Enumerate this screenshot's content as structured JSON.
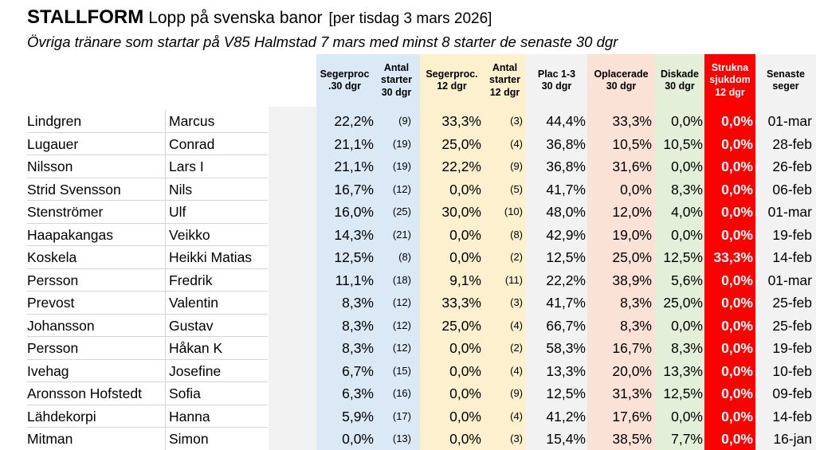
{
  "header": {
    "brand": "STALLFORM",
    "title": "Lopp på svenska banor",
    "date_note": "[per tisdag 3 mars 2026]",
    "subtitle": "Övriga tränare som startar på V85 Halmstad 7 mars med minst 8 starter de senaste 30 dgr"
  },
  "colors": {
    "blue": "#dbe8f6",
    "yellow": "#fdf0cf",
    "grey": "#f2f2f2",
    "salmon": "#fbe2d7",
    "green": "#e3efd9",
    "red": "#ff0000"
  },
  "columns": {
    "seger30": "Segerproc\n.30 dgr",
    "starter30": "Antal\nstarter\n30 dgr",
    "seger12": "Segerproc.\n12 dgr",
    "starter12": "Antal\nstarter\n12 dgr",
    "plac": "Plac 1-3\n30 dgr",
    "oplac": "Oplacerade\n30 dgr",
    "disk": "Diskade\n30 dgr",
    "strukna": "Strukna\nsjukdom\n12 dgr",
    "senaste": "Senaste\nseger"
  },
  "rows": [
    {
      "last": "Lindgren",
      "first": "Marcus",
      "s30": "22,2%",
      "n30": "(9)",
      "s12": "33,3%",
      "n12": "(3)",
      "plac": "44,4%",
      "oplac": "33,3%",
      "disk": "0,0%",
      "str": "0,0%",
      "sen": "01-mar"
    },
    {
      "last": "Lugauer",
      "first": "Conrad",
      "s30": "21,1%",
      "n30": "(19)",
      "s12": "25,0%",
      "n12": "(4)",
      "plac": "36,8%",
      "oplac": "10,5%",
      "disk": "10,5%",
      "str": "0,0%",
      "sen": "28-feb"
    },
    {
      "last": "Nilsson",
      "first": "Lars I",
      "s30": "21,1%",
      "n30": "(19)",
      "s12": "22,2%",
      "n12": "(9)",
      "plac": "36,8%",
      "oplac": "31,6%",
      "disk": "0,0%",
      "str": "0,0%",
      "sen": "26-feb"
    },
    {
      "last": "Strid Svensson",
      "first": "Nils",
      "s30": "16,7%",
      "n30": "(12)",
      "s12": "0,0%",
      "n12": "(5)",
      "plac": "41,7%",
      "oplac": "0,0%",
      "disk": "8,3%",
      "str": "0,0%",
      "sen": "06-feb"
    },
    {
      "last": "Stenströmer",
      "first": "Ulf",
      "s30": "16,0%",
      "n30": "(25)",
      "s12": "30,0%",
      "n12": "(10)",
      "plac": "48,0%",
      "oplac": "12,0%",
      "disk": "4,0%",
      "str": "0,0%",
      "sen": "01-mar"
    },
    {
      "last": "Haapakangas",
      "first": "Veikko",
      "s30": "14,3%",
      "n30": "(21)",
      "s12": "0,0%",
      "n12": "(8)",
      "plac": "42,9%",
      "oplac": "19,0%",
      "disk": "0,0%",
      "str": "0,0%",
      "sen": "19-feb"
    },
    {
      "last": "Koskela",
      "first": "Heikki Matias",
      "s30": "12,5%",
      "n30": "(8)",
      "s12": "0,0%",
      "n12": "(2)",
      "plac": "12,5%",
      "oplac": "25,0%",
      "disk": "12,5%",
      "str": "33,3%",
      "sen": "14-feb"
    },
    {
      "last": "Persson",
      "first": "Fredrik",
      "s30": "11,1%",
      "n30": "(18)",
      "s12": "9,1%",
      "n12": "(11)",
      "plac": "22,2%",
      "oplac": "38,9%",
      "disk": "5,6%",
      "str": "0,0%",
      "sen": "01-mar"
    },
    {
      "last": "Prevost",
      "first": "Valentin",
      "s30": "8,3%",
      "n30": "(12)",
      "s12": "33,3%",
      "n12": "(3)",
      "plac": "41,7%",
      "oplac": "8,3%",
      "disk": "25,0%",
      "str": "0,0%",
      "sen": "25-feb"
    },
    {
      "last": "Johansson",
      "first": "Gustav",
      "s30": "8,3%",
      "n30": "(12)",
      "s12": "25,0%",
      "n12": "(4)",
      "plac": "66,7%",
      "oplac": "8,3%",
      "disk": "0,0%",
      "str": "0,0%",
      "sen": "25-feb"
    },
    {
      "last": "Persson",
      "first": "Håkan K",
      "s30": "8,3%",
      "n30": "(12)",
      "s12": "0,0%",
      "n12": "(2)",
      "plac": "58,3%",
      "oplac": "16,7%",
      "disk": "8,3%",
      "str": "0,0%",
      "sen": "19-feb"
    },
    {
      "last": "Ivehag",
      "first": "Josefine",
      "s30": "6,7%",
      "n30": "(15)",
      "s12": "0,0%",
      "n12": "(4)",
      "plac": "13,3%",
      "oplac": "20,0%",
      "disk": "13,3%",
      "str": "0,0%",
      "sen": "10-feb"
    },
    {
      "last": "Aronsson Hofstedt",
      "first": "Sofia",
      "s30": "6,3%",
      "n30": "(16)",
      "s12": "0,0%",
      "n12": "(9)",
      "plac": "12,5%",
      "oplac": "31,3%",
      "disk": "12,5%",
      "str": "0,0%",
      "sen": "09-feb"
    },
    {
      "last": "Lähdekorpi",
      "first": "Hanna",
      "s30": "5,9%",
      "n30": "(17)",
      "s12": "0,0%",
      "n12": "(4)",
      "plac": "41,2%",
      "oplac": "17,6%",
      "disk": "0,0%",
      "str": "0,0%",
      "sen": "14-feb"
    },
    {
      "last": "Mitman",
      "first": "Simon",
      "s30": "0,0%",
      "n30": "(13)",
      "s12": "0,0%",
      "n12": "(3)",
      "plac": "15,4%",
      "oplac": "38,5%",
      "disk": "7,7%",
      "str": "0,0%",
      "sen": "16-jan"
    }
  ]
}
